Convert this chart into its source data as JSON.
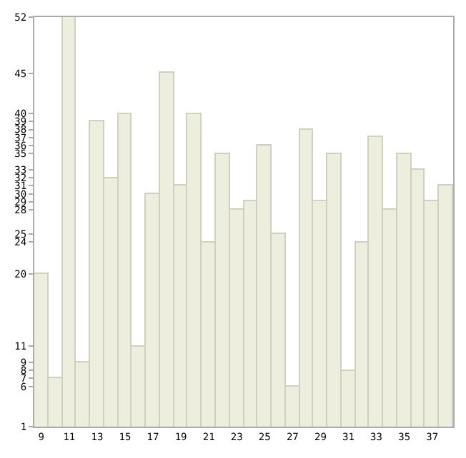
{
  "chart_data": {
    "type": "bar",
    "x": [
      9,
      10,
      11,
      12,
      13,
      14,
      15,
      16,
      17,
      18,
      19,
      20,
      21,
      22,
      23,
      24,
      25,
      26,
      27,
      28,
      29,
      30,
      31,
      32,
      33,
      34,
      35,
      36,
      37,
      38
    ],
    "values": [
      20,
      7,
      52,
      9,
      39,
      32,
      40,
      11,
      30,
      45,
      31,
      40,
      24,
      35,
      28,
      29,
      36,
      25,
      6,
      38,
      29,
      35,
      8,
      24,
      37,
      28,
      35,
      33,
      29,
      31
    ],
    "color": "#eeeedf",
    "xlim": [
      8.5,
      38.5
    ],
    "xticks": [
      9,
      11,
      13,
      15,
      17,
      19,
      21,
      23,
      25,
      27,
      29,
      31,
      33,
      35,
      37
    ],
    "ylim": [
      1,
      52
    ],
    "yticks": [
      1,
      6,
      7,
      8,
      9,
      11,
      20,
      24,
      25,
      28,
      29,
      30,
      31,
      32,
      33,
      35,
      36,
      37,
      38,
      39,
      40,
      45,
      52
    ]
  }
}
